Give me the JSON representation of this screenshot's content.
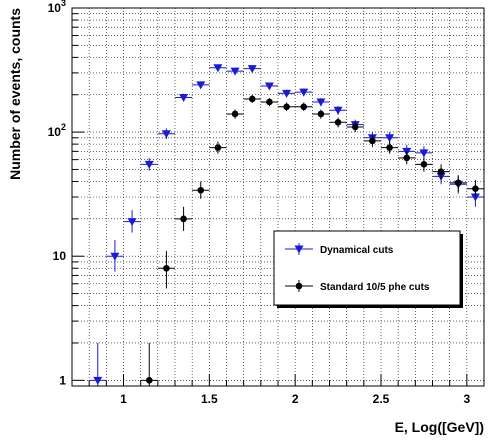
{
  "chart_data": {
    "type": "scatter",
    "title": "",
    "xlabel": "E, Log([GeV])",
    "ylabel": "Number of events, counts",
    "xlim": [
      0.7,
      3.1
    ],
    "ylim": [
      0.9,
      1000
    ],
    "ylog": true,
    "grid": true,
    "legend_position": "bottom-right",
    "x_ticks": [
      "1",
      "1.5",
      "2",
      "2.5",
      "3"
    ],
    "y_ticks": [
      "1",
      "10",
      "10²",
      "10³"
    ],
    "series": [
      {
        "name": "Dynamical cuts",
        "color": "#1b1bd1",
        "marker": "triangle-down",
        "points": [
          {
            "x": 0.85,
            "y": 1,
            "ylo": 0.9,
            "yhi": 2.0
          },
          {
            "x": 0.95,
            "y": 10,
            "ylo": 7.5,
            "yhi": 13.5
          },
          {
            "x": 1.05,
            "y": 19,
            "ylo": 15.5,
            "yhi": 23.5
          },
          {
            "x": 1.15,
            "y": 55,
            "ylo": 49,
            "yhi": 62
          },
          {
            "x": 1.25,
            "y": 97,
            "ylo": 88,
            "yhi": 107
          },
          {
            "x": 1.35,
            "y": 190,
            "ylo": 177,
            "yhi": 204
          },
          {
            "x": 1.45,
            "y": 240,
            "ylo": 225,
            "yhi": 256
          },
          {
            "x": 1.55,
            "y": 330,
            "ylo": 312,
            "yhi": 349
          },
          {
            "x": 1.65,
            "y": 310,
            "ylo": 293,
            "yhi": 328
          },
          {
            "x": 1.75,
            "y": 325,
            "ylo": 307,
            "yhi": 344
          },
          {
            "x": 1.85,
            "y": 235,
            "ylo": 220,
            "yhi": 251
          },
          {
            "x": 1.95,
            "y": 205,
            "ylo": 191,
            "yhi": 220
          },
          {
            "x": 2.05,
            "y": 210,
            "ylo": 196,
            "yhi": 225
          },
          {
            "x": 2.15,
            "y": 175,
            "ylo": 162,
            "yhi": 188
          },
          {
            "x": 2.25,
            "y": 150,
            "ylo": 138,
            "yhi": 162
          },
          {
            "x": 2.35,
            "y": 115,
            "ylo": 105,
            "yhi": 126
          },
          {
            "x": 2.45,
            "y": 90,
            "ylo": 81,
            "yhi": 100
          },
          {
            "x": 2.55,
            "y": 90,
            "ylo": 81,
            "yhi": 100
          },
          {
            "x": 2.65,
            "y": 70,
            "ylo": 62,
            "yhi": 79
          },
          {
            "x": 2.75,
            "y": 68,
            "ylo": 60,
            "yhi": 77
          },
          {
            "x": 2.85,
            "y": 44,
            "ylo": 38,
            "yhi": 51
          },
          {
            "x": 2.95,
            "y": 38,
            "ylo": 32,
            "yhi": 44
          },
          {
            "x": 3.05,
            "y": 30,
            "ylo": 25,
            "yhi": 36
          }
        ]
      },
      {
        "name": "Standard 10/5 phe cuts",
        "color": "#000000",
        "marker": "circle",
        "points": [
          {
            "x": 1.15,
            "y": 1,
            "ylo": 0.9,
            "yhi": 2.0
          },
          {
            "x": 1.25,
            "y": 8,
            "ylo": 5.5,
            "yhi": 11.0
          },
          {
            "x": 1.35,
            "y": 20,
            "ylo": 16,
            "yhi": 25
          },
          {
            "x": 1.45,
            "y": 34,
            "ylo": 29,
            "yhi": 40
          },
          {
            "x": 1.55,
            "y": 75,
            "ylo": 67,
            "yhi": 84
          },
          {
            "x": 1.65,
            "y": 140,
            "ylo": 128,
            "yhi": 152
          },
          {
            "x": 1.75,
            "y": 185,
            "ylo": 172,
            "yhi": 199
          },
          {
            "x": 1.85,
            "y": 175,
            "ylo": 162,
            "yhi": 188
          },
          {
            "x": 1.95,
            "y": 160,
            "ylo": 148,
            "yhi": 173
          },
          {
            "x": 2.05,
            "y": 160,
            "ylo": 148,
            "yhi": 173
          },
          {
            "x": 2.15,
            "y": 140,
            "ylo": 128,
            "yhi": 152
          },
          {
            "x": 2.25,
            "y": 120,
            "ylo": 109,
            "yhi": 131
          },
          {
            "x": 2.35,
            "y": 110,
            "ylo": 100,
            "yhi": 121
          },
          {
            "x": 2.45,
            "y": 85,
            "ylo": 76,
            "yhi": 94
          },
          {
            "x": 2.55,
            "y": 75,
            "ylo": 67,
            "yhi": 84
          },
          {
            "x": 2.65,
            "y": 62,
            "ylo": 55,
            "yhi": 70
          },
          {
            "x": 2.75,
            "y": 55,
            "ylo": 48,
            "yhi": 62
          },
          {
            "x": 2.85,
            "y": 48,
            "ylo": 42,
            "yhi": 55
          },
          {
            "x": 2.95,
            "y": 39,
            "ylo": 33,
            "yhi": 45
          },
          {
            "x": 3.05,
            "y": 35,
            "ylo": 30,
            "yhi": 41
          }
        ]
      }
    ]
  }
}
